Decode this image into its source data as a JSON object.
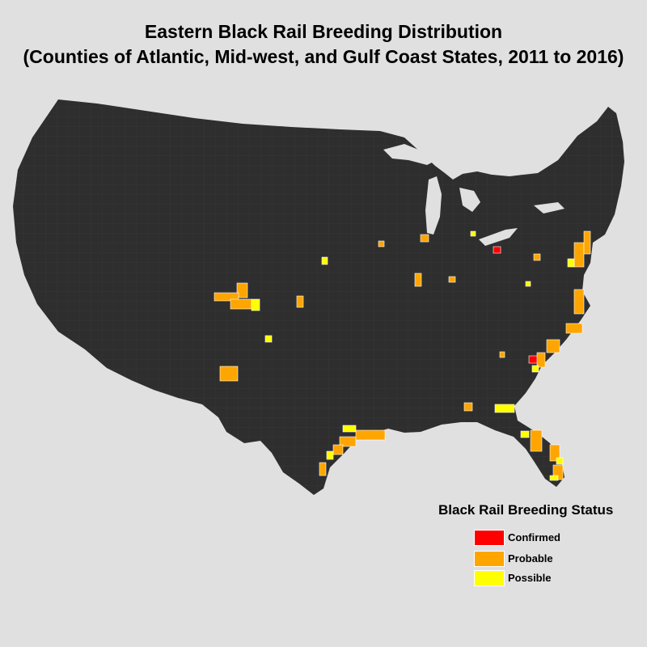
{
  "title": {
    "line1": "Eastern Black Rail Breeding Distribution",
    "line2": "(Counties of Atlantic, Mid-west, and Gulf Coast States, 2011 to 2016)"
  },
  "legend": {
    "title": "Black Rail Breeding Status",
    "items": [
      {
        "label": "Confirmed",
        "color": "#ff0000"
      },
      {
        "label": "Probable",
        "color": "#ffa500"
      },
      {
        "label": "Possible",
        "color": "#ffff00"
      }
    ]
  },
  "colors": {
    "background": "#e0e0e0",
    "land": "#2e2e2e",
    "county_border": "#3c3c3c",
    "highlight_border": "#ffffff"
  }
}
